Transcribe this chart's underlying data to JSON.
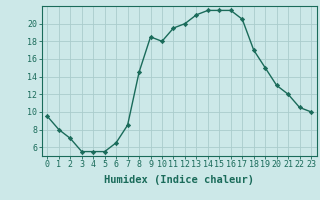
{
  "x": [
    0,
    1,
    2,
    3,
    4,
    5,
    6,
    7,
    8,
    9,
    10,
    11,
    12,
    13,
    14,
    15,
    16,
    17,
    18,
    19,
    20,
    21,
    22,
    23
  ],
  "y": [
    9.5,
    8.0,
    7.0,
    5.5,
    5.5,
    5.5,
    6.5,
    8.5,
    14.5,
    18.5,
    18.0,
    19.5,
    20.0,
    21.0,
    21.5,
    21.5,
    21.5,
    20.5,
    17.0,
    15.0,
    13.0,
    12.0,
    10.5,
    10.0
  ],
  "line_color": "#1a6b5a",
  "marker": "D",
  "marker_size": 2.2,
  "bg_color": "#cce8e8",
  "grid_color": "#aacccc",
  "xlabel": "Humidex (Indice chaleur)",
  "xlabel_fontsize": 7.5,
  "tick_fontsize": 6,
  "ylim": [
    5,
    22
  ],
  "xlim": [
    -0.5,
    23.5
  ],
  "yticks": [
    6,
    8,
    10,
    12,
    14,
    16,
    18,
    20
  ],
  "xticks": [
    0,
    1,
    2,
    3,
    4,
    5,
    6,
    7,
    8,
    9,
    10,
    11,
    12,
    13,
    14,
    15,
    16,
    17,
    18,
    19,
    20,
    21,
    22,
    23
  ],
  "line_width": 1.0
}
